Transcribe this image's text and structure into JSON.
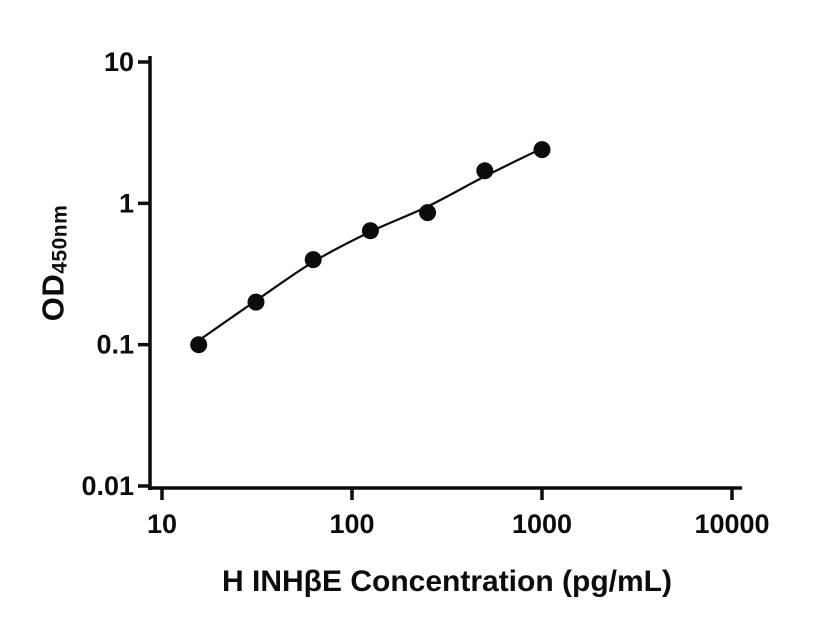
{
  "chart_data": {
    "type": "scatter",
    "title": "",
    "xlabel": "H INHβE Concentration (pg/mL)",
    "ylabel": "OD450nm",
    "ylabel_main": "OD",
    "ylabel_sub": "450nm",
    "x_scale": "log",
    "y_scale": "log",
    "xlim": [
      10,
      10000
    ],
    "ylim": [
      0.01,
      10
    ],
    "grid": false,
    "legend": null,
    "x_ticks": {
      "values": [
        10,
        100,
        1000,
        10000
      ],
      "labels": [
        "10",
        "100",
        "1000",
        "10000"
      ]
    },
    "y_ticks": {
      "values": [
        10,
        1,
        0.1,
        0.01
      ],
      "labels": [
        "10",
        "1",
        "0.1",
        "0.01"
      ]
    },
    "points": {
      "x": [
        15.6,
        31.25,
        62.5,
        125,
        250,
        500,
        1000
      ],
      "y": [
        0.1,
        0.2,
        0.4,
        0.64,
        0.86,
        1.7,
        2.4
      ]
    },
    "fit_line": {
      "x": [
        15.6,
        31.25,
        62.5,
        125,
        250,
        500,
        1000
      ],
      "y": [
        0.107,
        0.205,
        0.385,
        0.63,
        0.95,
        1.55,
        2.45
      ]
    },
    "marker": {
      "shape": "circle",
      "color": "#0c0c0c",
      "radius_px": 8.5
    },
    "line_color": "#0c0c0c",
    "axis_color": "#0c0c0c",
    "background_color": "#ffffff"
  }
}
